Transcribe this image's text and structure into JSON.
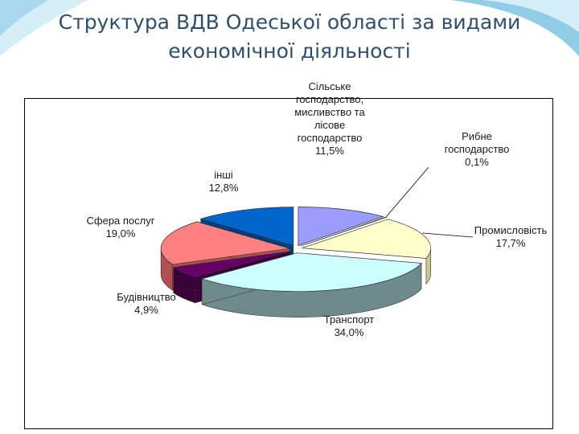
{
  "title_line1": "Структура ВДВ Одеської області за видами",
  "title_line2": "економічної діяльності",
  "colors": {
    "title": "#2e4f6e",
    "swoosh_light": "#d6eef8",
    "swoosh_dark": "#7fc4e3"
  },
  "chart_data": {
    "type": "pie",
    "style": "3d-exploded",
    "slices": [
      {
        "label": [
          "Сільське",
          "господарство,",
          "мисливство та",
          "лісове",
          "господарство"
        ],
        "value_text": "11,5%",
        "value": 11.5,
        "color": "#9c9cff",
        "side": "#6a6ad0"
      },
      {
        "label": [
          "Рибне",
          "господарство"
        ],
        "value_text": "0,1%",
        "value": 0.1,
        "color": "#9c3a60",
        "side": "#6d2443"
      },
      {
        "label": [
          "Промисловість"
        ],
        "value_text": "17,7%",
        "value": 17.7,
        "color": "#ffffcc",
        "side": "#c9c98a"
      },
      {
        "label": [
          "Транспорт"
        ],
        "value_text": "34,0%",
        "value": 34.0,
        "color": "#ccffff",
        "side": "#6f8a8a"
      },
      {
        "label": [
          "Будівництво"
        ],
        "value_text": "4,9%",
        "value": 4.9,
        "color": "#660066",
        "side": "#3a003a"
      },
      {
        "label": [
          "Сфера послуг"
        ],
        "value_text": "19,0%",
        "value": 19.0,
        "color": "#ff8080",
        "side": "#b05050"
      },
      {
        "label": [
          "інші"
        ],
        "value_text": "12,8%",
        "value": 12.8,
        "color": "#0066cc",
        "side": "#003f7f"
      }
    ]
  }
}
